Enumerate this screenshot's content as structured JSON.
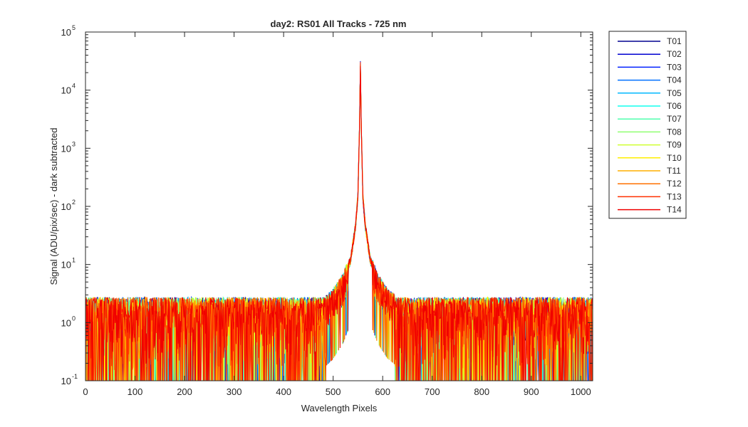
{
  "chart_data": {
    "type": "line",
    "title": "day2: RS01  All Tracks - 725 nm",
    "xlabel": "Wavelength Pixels",
    "ylabel": "Signal (ADU/pix/sec) - dark subtracted",
    "xlim": [
      0,
      1024
    ],
    "ylim": [
      0.1,
      100000
    ],
    "yscale": "log",
    "x_ticks": [
      "0",
      "100",
      "200",
      "300",
      "400",
      "500",
      "600",
      "700",
      "800",
      "900",
      "1000"
    ],
    "y_ticks": [
      {
        "base": "10",
        "exp": "-1"
      },
      {
        "base": "10",
        "exp": "0"
      },
      {
        "base": "10",
        "exp": "1"
      },
      {
        "base": "10",
        "exp": "2"
      },
      {
        "base": "10",
        "exp": "3"
      },
      {
        "base": "10",
        "exp": "4"
      },
      {
        "base": "10",
        "exp": "5"
      }
    ],
    "legend_placement": "outside-right",
    "profile": {
      "peak_x": 555,
      "peak_y": 27000,
      "noise_floor": 1.0,
      "noise_max": 3.5,
      "x_points": [
        0,
        200,
        400,
        450,
        480,
        500,
        520,
        535,
        545,
        550,
        553,
        555,
        557,
        560,
        565,
        575,
        590,
        610,
        650,
        800,
        1024
      ],
      "y_points": [
        1.0,
        1.0,
        1.1,
        1.4,
        2.0,
        3.0,
        5.5,
        12,
        45,
        150,
        2000,
        27000,
        2000,
        150,
        45,
        12,
        5.5,
        3.0,
        1.6,
        1.0,
        1.0
      ]
    },
    "series": [
      {
        "name": "T01",
        "color": "#00008f"
      },
      {
        "name": "T02",
        "color": "#0000d0"
      },
      {
        "name": "T03",
        "color": "#0020ff"
      },
      {
        "name": "T04",
        "color": "#0070ff"
      },
      {
        "name": "T05",
        "color": "#00b8ff"
      },
      {
        "name": "T06",
        "color": "#10ffef"
      },
      {
        "name": "T07",
        "color": "#50ffaf"
      },
      {
        "name": "T08",
        "color": "#8fff70"
      },
      {
        "name": "T09",
        "color": "#cfff30"
      },
      {
        "name": "T10",
        "color": "#ffef00"
      },
      {
        "name": "T11",
        "color": "#ffaf00"
      },
      {
        "name": "T12",
        "color": "#ff7000"
      },
      {
        "name": "T13",
        "color": "#ff3000"
      },
      {
        "name": "T14",
        "color": "#f00000"
      }
    ]
  }
}
